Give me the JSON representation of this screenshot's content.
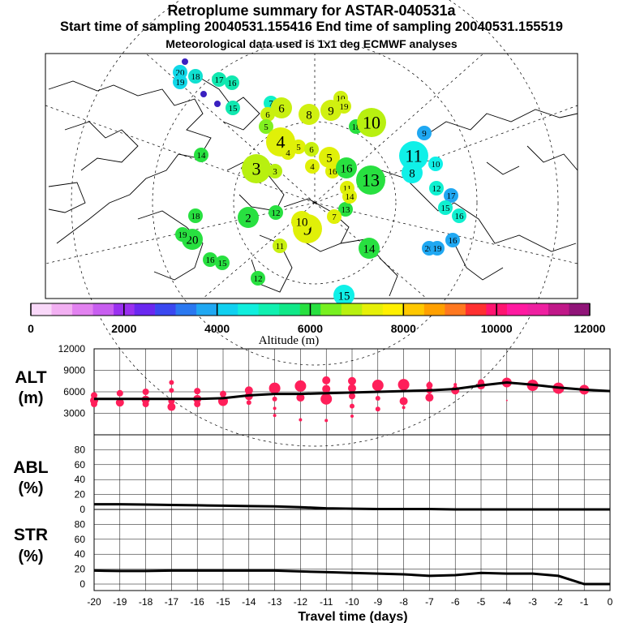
{
  "header": {
    "title": "Retroplume summary for ASTAR-040531a",
    "sampling_line": "Start time of sampling 20040531.155416     End time of sampling 20040531.155519",
    "meteo_line": "Meteorological data used is 1x1 deg ECMWF analyses"
  },
  "colors": {
    "marker": "#ff1f5a",
    "line": "#000000",
    "scale": [
      "#f9d8f9",
      "#f2b0f2",
      "#e282f0",
      "#c85ef0",
      "#9a30f0",
      "#6a28f0",
      "#3a48f0",
      "#2a78f0",
      "#20a8f2",
      "#10d0f0",
      "#10eedd",
      "#10f0b0",
      "#10e888",
      "#28e040",
      "#78f020",
      "#b8f010",
      "#e6f008",
      "#fff000",
      "#ffc800",
      "#ffa000",
      "#ff7820",
      "#ff3030",
      "#ff1470",
      "#ff1aa0",
      "#ee20a0",
      "#c01888",
      "#901478"
    ]
  },
  "legend": {
    "labels": [
      "0",
      "2000",
      "4000",
      "6000",
      "8000",
      "10000",
      "12000"
    ],
    "title": "Altitude (m)"
  },
  "map_markers": [
    {
      "label": "20",
      "color": "#10d8e8",
      "size": "s"
    },
    {
      "label": "19",
      "color": "#10d8e8",
      "size": "s"
    },
    {
      "label": "18",
      "color": "#10e0d0",
      "size": "s"
    },
    {
      "label": "17",
      "color": "#10e8b0",
      "size": "s"
    },
    {
      "label": "16",
      "color": "#10e8b0",
      "size": "s"
    },
    {
      "label": "15",
      "color": "#10e8b0",
      "size": "s"
    },
    {
      "label": "7",
      "color": "#10f0c8",
      "size": "s"
    },
    {
      "label": "6",
      "color": "#c8f010",
      "size": "m"
    },
    {
      "label": "6",
      "color": "#c8f010",
      "size": "s"
    },
    {
      "label": "5",
      "color": "#80f020",
      "size": "s"
    },
    {
      "label": "8",
      "color": "#d0f010",
      "size": "m"
    },
    {
      "label": "9",
      "color": "#d0f010",
      "size": "m"
    },
    {
      "label": "10",
      "color": "#d0f010",
      "size": "s"
    },
    {
      "label": "19",
      "color": "#d0f010",
      "size": "s"
    },
    {
      "label": "18",
      "color": "#28e040",
      "size": "s"
    },
    {
      "label": "15",
      "color": "#28e040",
      "size": "s"
    },
    {
      "label": "10",
      "color": "#b8f010",
      "size": "l"
    },
    {
      "label": "4",
      "color": "#e0f008",
      "size": "l"
    },
    {
      "label": "4",
      "color": "#e0f008",
      "size": "s"
    },
    {
      "label": "5",
      "color": "#e0f008",
      "size": "s"
    },
    {
      "label": "14",
      "color": "#28e040",
      "size": "s"
    },
    {
      "label": "3",
      "color": "#b8f010",
      "size": "l"
    },
    {
      "label": "3",
      "color": "#b8f010",
      "size": "s"
    },
    {
      "label": "6",
      "color": "#c8f010",
      "size": "s"
    },
    {
      "label": "5",
      "color": "#e0f008",
      "size": "m"
    },
    {
      "label": "4",
      "color": "#e0f008",
      "size": "s"
    },
    {
      "label": "16",
      "color": "#e0f008",
      "size": "s"
    },
    {
      "label": "16",
      "color": "#28e040",
      "size": "m"
    },
    {
      "label": "13",
      "color": "#28e040",
      "size": "l"
    },
    {
      "label": "11",
      "color": "#10f0e8",
      "size": "l"
    },
    {
      "label": "8",
      "color": "#10f0e8",
      "size": "m"
    },
    {
      "label": "9",
      "color": "#20a8f2",
      "size": "s"
    },
    {
      "label": "10",
      "color": "#10f0e8",
      "size": "s"
    },
    {
      "label": "11",
      "color": "#e0f008",
      "size": "s"
    },
    {
      "label": "12",
      "color": "#10f0d0",
      "size": "s"
    },
    {
      "label": "17",
      "color": "#20a8f2",
      "size": "s"
    },
    {
      "label": "15",
      "color": "#10f0d0",
      "size": "s"
    },
    {
      "label": "16",
      "color": "#10f0d0",
      "size": "s"
    },
    {
      "label": "16",
      "color": "#20a8f2",
      "size": "s"
    },
    {
      "label": "18",
      "color": "#28e040",
      "size": "s"
    },
    {
      "label": "20",
      "color": "#28e040",
      "size": "m"
    },
    {
      "label": "19",
      "color": "#28e040",
      "size": "s"
    },
    {
      "label": "16",
      "color": "#28e040",
      "size": "s"
    },
    {
      "label": "15",
      "color": "#28e040",
      "size": "s"
    },
    {
      "label": "12",
      "color": "#28e040",
      "size": "s"
    },
    {
      "label": "9",
      "color": "#e0f008",
      "size": "l"
    },
    {
      "label": "10",
      "color": "#e0f008",
      "size": "m"
    },
    {
      "label": "14",
      "color": "#28e040",
      "size": "m"
    },
    {
      "label": "11",
      "color": "#c8f010",
      "size": "s"
    },
    {
      "label": "20",
      "color": "#20a8f2",
      "size": "s"
    },
    {
      "label": "19",
      "color": "#20a8f2",
      "size": "s"
    },
    {
      "label": "15",
      "color": "#10f0e8",
      "size": "m"
    },
    {
      "label": "2",
      "color": "#28e040",
      "size": "m"
    },
    {
      "label": "12",
      "color": "#28e040",
      "size": "s"
    },
    {
      "label": "13",
      "color": "#28e040",
      "size": "s"
    },
    {
      "label": "14",
      "color": "#e0f008",
      "size": "s"
    },
    {
      "label": "7",
      "color": "#e0f008",
      "size": "s"
    }
  ],
  "chart_data": [
    {
      "type": "scatter",
      "panel": "ALT",
      "ylabel": "ALT\n(m)",
      "ylabel_lines": [
        "ALT",
        "(m)"
      ],
      "ylim": [
        0,
        12000
      ],
      "yticks": [
        "12000",
        "9000",
        "6000",
        "3000"
      ],
      "xlim": [
        -20,
        0
      ],
      "mean_line": {
        "x": [
          -20,
          -19,
          -18,
          -17,
          -16,
          -15,
          -14,
          -13,
          -12,
          -11,
          -10,
          -9,
          -8,
          -7,
          -6,
          -5,
          -4,
          -3,
          -2,
          -1,
          0
        ],
        "y": [
          5000,
          5000,
          5000,
          5000,
          5000,
          5100,
          5500,
          5700,
          5700,
          5800,
          5900,
          6000,
          6100,
          6200,
          6400,
          6900,
          7300,
          7000,
          6600,
          6300,
          6100
        ]
      },
      "points": [
        {
          "x": -20,
          "y": 5500,
          "r": 4
        },
        {
          "x": -20,
          "y": 4800,
          "r": 5
        },
        {
          "x": -20,
          "y": 4300,
          "r": 4
        },
        {
          "x": -19,
          "y": 5800,
          "r": 4
        },
        {
          "x": -19,
          "y": 4500,
          "r": 5
        },
        {
          "x": -18,
          "y": 6000,
          "r": 4
        },
        {
          "x": -18,
          "y": 4900,
          "r": 5
        },
        {
          "x": -18,
          "y": 4300,
          "r": 4
        },
        {
          "x": -17,
          "y": 7300,
          "r": 3
        },
        {
          "x": -17,
          "y": 6200,
          "r": 3
        },
        {
          "x": -17,
          "y": 4700,
          "r": 4
        },
        {
          "x": -17,
          "y": 3900,
          "r": 5
        },
        {
          "x": -16,
          "y": 6100,
          "r": 4
        },
        {
          "x": -16,
          "y": 5000,
          "r": 5
        },
        {
          "x": -16,
          "y": 4300,
          "r": 4
        },
        {
          "x": -15,
          "y": 5700,
          "r": 4
        },
        {
          "x": -15,
          "y": 4700,
          "r": 6
        },
        {
          "x": -14,
          "y": 6200,
          "r": 5
        },
        {
          "x": -14,
          "y": 5400,
          "r": 5
        },
        {
          "x": -14,
          "y": 4500,
          "r": 3
        },
        {
          "x": -13,
          "y": 6500,
          "r": 7
        },
        {
          "x": -13,
          "y": 5000,
          "r": 3
        },
        {
          "x": -13,
          "y": 3700,
          "r": 2
        },
        {
          "x": -13,
          "y": 2700,
          "r": 2
        },
        {
          "x": -12,
          "y": 6800,
          "r": 7
        },
        {
          "x": -12,
          "y": 5200,
          "r": 5
        },
        {
          "x": -12,
          "y": 2100,
          "r": 2
        },
        {
          "x": -11,
          "y": 7600,
          "r": 5
        },
        {
          "x": -11,
          "y": 6400,
          "r": 5
        },
        {
          "x": -11,
          "y": 5000,
          "r": 7
        },
        {
          "x": -11,
          "y": 2000,
          "r": 2
        },
        {
          "x": -10,
          "y": 7500,
          "r": 5
        },
        {
          "x": -10,
          "y": 6500,
          "r": 5
        },
        {
          "x": -10,
          "y": 5400,
          "r": 4
        },
        {
          "x": -10,
          "y": 4000,
          "r": 3
        },
        {
          "x": -10,
          "y": 2600,
          "r": 2
        },
        {
          "x": -9,
          "y": 6900,
          "r": 7
        },
        {
          "x": -9,
          "y": 5100,
          "r": 3
        },
        {
          "x": -9,
          "y": 3600,
          "r": 3
        },
        {
          "x": -8,
          "y": 7000,
          "r": 7
        },
        {
          "x": -8,
          "y": 4700,
          "r": 5
        },
        {
          "x": -8,
          "y": 3800,
          "r": 2
        },
        {
          "x": -7,
          "y": 7200,
          "r": 2
        },
        {
          "x": -7,
          "y": 6900,
          "r": 4
        },
        {
          "x": -7,
          "y": 6200,
          "r": 4
        },
        {
          "x": -7,
          "y": 5200,
          "r": 5
        },
        {
          "x": -6,
          "y": 7000,
          "r": 2
        },
        {
          "x": -6,
          "y": 6700,
          "r": 2
        },
        {
          "x": -6,
          "y": 6200,
          "r": 5
        },
        {
          "x": -5,
          "y": 7300,
          "r": 4
        },
        {
          "x": -5,
          "y": 6900,
          "r": 5
        },
        {
          "x": -4,
          "y": 7300,
          "r": 6
        },
        {
          "x": -4,
          "y": 4800,
          "r": 1
        },
        {
          "x": -3,
          "y": 6900,
          "r": 7
        },
        {
          "x": -2,
          "y": 6500,
          "r": 7
        },
        {
          "x": -1,
          "y": 6300,
          "r": 6
        }
      ]
    },
    {
      "type": "line",
      "panel": "ABL",
      "ylabel": "ABL\n(%)",
      "ylabel_lines": [
        "ABL",
        "(%)"
      ],
      "ylim": [
        0,
        100
      ],
      "yticks": [
        "80",
        "60",
        "40",
        "20",
        "0"
      ],
      "x": [
        -20,
        -19,
        -18,
        -17,
        -16,
        -15,
        -14,
        -13,
        -12,
        -11,
        -10,
        -9,
        -8,
        -7,
        -6,
        -5,
        -4,
        -3,
        -2,
        -1,
        0
      ],
      "y": [
        7,
        7,
        6.5,
        6,
        5.5,
        5,
        4.5,
        4,
        3,
        1.5,
        1,
        0.5,
        0.5,
        0.5,
        0,
        0,
        0,
        0,
        0,
        0,
        0
      ]
    },
    {
      "type": "line",
      "panel": "STR",
      "ylabel": "STR\n(%)",
      "ylabel_lines": [
        "STR",
        "(%)"
      ],
      "ylim": [
        0,
        100
      ],
      "yticks": [
        "80",
        "60",
        "40",
        "20",
        "0"
      ],
      "xlabel": "Travel time (days)",
      "xticks": [
        "-20",
        "-19",
        "-18",
        "-17",
        "-16",
        "-15",
        "-14",
        "-13",
        "-12",
        "-11",
        "-10",
        "-9",
        "-8",
        "-7",
        "-6",
        "-5",
        "-4",
        "-3",
        "-2",
        "-1",
        "0"
      ],
      "x": [
        -20,
        -19,
        -18,
        -17,
        -16,
        -15,
        -14,
        -13,
        -12,
        -11,
        -10,
        -9,
        -8,
        -7,
        -6,
        -5,
        -4,
        -3,
        -2,
        -1,
        0
      ],
      "y": [
        18,
        17.5,
        17.5,
        18,
        18,
        18,
        18,
        18,
        17,
        16,
        15,
        14,
        13,
        11,
        12,
        15,
        14,
        14,
        11,
        0,
        0
      ]
    }
  ]
}
